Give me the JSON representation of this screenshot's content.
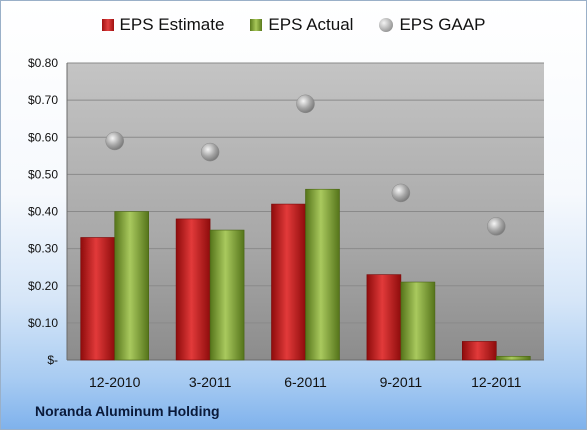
{
  "company": "Noranda Aluminum Holding",
  "chart_data": {
    "type": "bar",
    "categories": [
      "12-2010",
      "3-2011",
      "6-2011",
      "9-2011",
      "12-2011"
    ],
    "series": [
      {
        "name": "EPS Estimate",
        "kind": "bar",
        "color": "#c81e1e",
        "values": [
          0.33,
          0.38,
          0.42,
          0.23,
          0.05
        ]
      },
      {
        "name": "EPS Actual",
        "kind": "bar",
        "color": "#8db03c",
        "values": [
          0.4,
          0.35,
          0.46,
          0.21,
          0.01
        ]
      },
      {
        "name": "EPS GAAP",
        "kind": "scatter",
        "color": "#b0b0b0",
        "values": [
          0.59,
          0.56,
          0.69,
          0.45,
          0.36
        ]
      }
    ],
    "yticks": [
      "$-",
      "$0.10",
      "$0.20",
      "$0.30",
      "$0.40",
      "$0.50",
      "$0.60",
      "$0.70",
      "$0.80"
    ],
    "ylim": [
      0,
      0.8
    ],
    "grid": true,
    "legend_position": "top"
  }
}
